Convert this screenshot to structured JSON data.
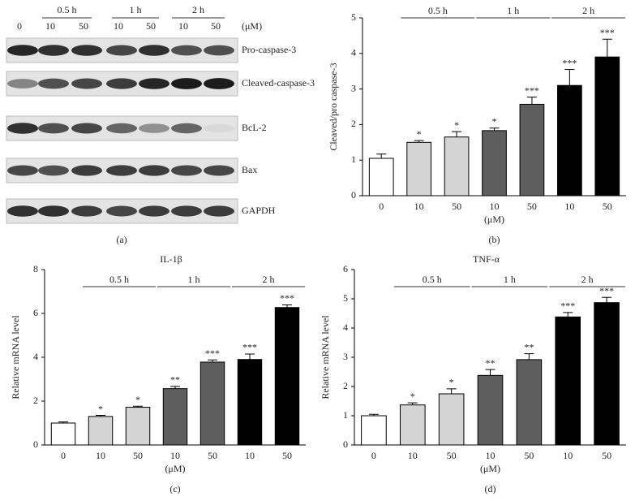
{
  "blot": {
    "time_labels": [
      "0.5 h",
      "1 h",
      "2 h"
    ],
    "lane_labels": [
      "0",
      "10",
      "50",
      "10",
      "50",
      "10",
      "50"
    ],
    "unit": "(μM)",
    "rows": [
      "Pro-caspase-3",
      "Cleaved-caspase-3",
      "BcL-2",
      "Bax",
      "GAPDH"
    ]
  },
  "panel_labels": [
    "(a)",
    "(b)",
    "(c)",
    "(d)"
  ],
  "chart_data": [
    {
      "type": "bar",
      "ylabel": "Cleaved/pro caspase-3",
      "xlabel": "(μM)",
      "categories": [
        "0",
        "10",
        "50",
        "10",
        "50",
        "10",
        "50"
      ],
      "values": [
        1.05,
        1.5,
        1.65,
        1.83,
        2.57,
        3.1,
        3.9
      ],
      "errors": [
        0.12,
        0.05,
        0.15,
        0.07,
        0.2,
        0.45,
        0.5
      ],
      "significance": [
        null,
        "*",
        "*",
        "*",
        "***",
        "***",
        "***"
      ],
      "colors": [
        "#ffffff",
        "#d4d4d4",
        "#d4d4d4",
        "#5e5e5e",
        "#5e5e5e",
        "#000000",
        "#000000"
      ],
      "groups": [
        {
          "label": "0.5 h",
          "span": [
            1,
            2
          ]
        },
        {
          "label": "1 h",
          "span": [
            3,
            4
          ]
        },
        {
          "label": "2 h",
          "span": [
            5,
            6
          ]
        }
      ],
      "ylim": [
        0,
        5
      ],
      "yticks": [
        0,
        1,
        2,
        3,
        4,
        5
      ]
    },
    {
      "type": "bar",
      "title": "IL-1β",
      "ylabel": "Relative mRNA level",
      "xlabel": "(μM)",
      "categories": [
        "0",
        "10",
        "50",
        "10",
        "50",
        "10",
        "50"
      ],
      "values": [
        1.0,
        1.3,
        1.72,
        2.57,
        3.78,
        3.9,
        6.27
      ],
      "errors": [
        0.05,
        0.05,
        0.05,
        0.1,
        0.1,
        0.25,
        0.12
      ],
      "significance": [
        null,
        "*",
        "*",
        "**",
        "***",
        "***",
        "***"
      ],
      "colors": [
        "#ffffff",
        "#d4d4d4",
        "#d4d4d4",
        "#5e5e5e",
        "#5e5e5e",
        "#000000",
        "#000000"
      ],
      "groups": [
        {
          "label": "0.5 h",
          "span": [
            1,
            2
          ]
        },
        {
          "label": "1 h",
          "span": [
            3,
            4
          ]
        },
        {
          "label": "2 h",
          "span": [
            5,
            6
          ]
        }
      ],
      "ylim": [
        0,
        8
      ],
      "yticks": [
        0,
        2,
        4,
        6,
        8
      ]
    },
    {
      "type": "bar",
      "title": "TNF-α",
      "ylabel": "Relative mRNA level",
      "xlabel": "(μM)",
      "categories": [
        "0",
        "10",
        "50",
        "10",
        "50",
        "10",
        "50"
      ],
      "values": [
        1.0,
        1.37,
        1.75,
        2.38,
        2.92,
        4.38,
        4.87
      ],
      "errors": [
        0.05,
        0.07,
        0.17,
        0.2,
        0.2,
        0.15,
        0.18
      ],
      "significance": [
        null,
        "*",
        "*",
        "**",
        "**",
        "***",
        "***"
      ],
      "colors": [
        "#ffffff",
        "#d4d4d4",
        "#d4d4d4",
        "#5e5e5e",
        "#5e5e5e",
        "#000000",
        "#000000"
      ],
      "groups": [
        {
          "label": "0.5 h",
          "span": [
            1,
            2
          ]
        },
        {
          "label": "1 h",
          "span": [
            3,
            4
          ]
        },
        {
          "label": "2 h",
          "span": [
            5,
            6
          ]
        }
      ],
      "ylim": [
        0,
        6
      ],
      "yticks": [
        0,
        1,
        2,
        3,
        4,
        5,
        6
      ]
    }
  ]
}
